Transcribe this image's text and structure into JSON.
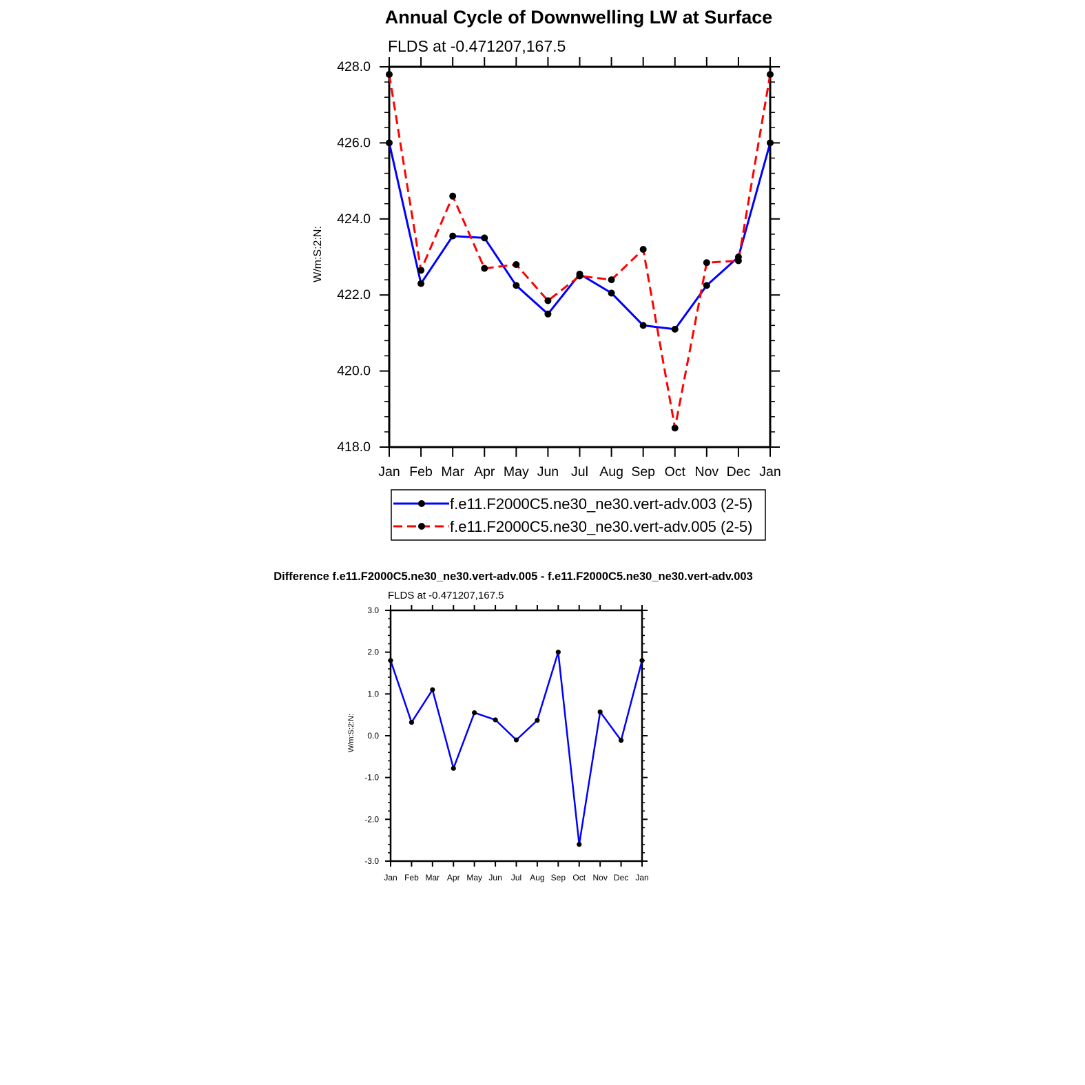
{
  "chart_data": [
    {
      "type": "line",
      "title": "Annual Cycle of Downwelling LW at Surface",
      "subtitle": "FLDS at -0.471207,167.5",
      "xlabel": "",
      "ylabel": "W/m:S:2:N:",
      "categories": [
        "Jan",
        "Feb",
        "Mar",
        "Apr",
        "May",
        "Jun",
        "Jul",
        "Aug",
        "Sep",
        "Oct",
        "Nov",
        "Dec",
        "Jan"
      ],
      "ylim": [
        418.0,
        428.0
      ],
      "yticks": [
        "418.0",
        "420.0",
        "422.0",
        "424.0",
        "426.0",
        "428.0"
      ],
      "grid": false,
      "legend_position": "bottom",
      "series": [
        {
          "name": "f.e11.F2000C5.ne30_ne30.vert-adv.003 (2-5)",
          "color": "#0000ff",
          "dash": "solid",
          "values": [
            426.0,
            422.3,
            423.55,
            423.5,
            422.25,
            421.5,
            422.55,
            422.05,
            421.2,
            421.1,
            422.25,
            423.0,
            426.0
          ]
        },
        {
          "name": "f.e11.F2000C5.ne30_ne30.vert-adv.005 (2-5)",
          "color": "#ff0000",
          "dash": "dashed",
          "values": [
            427.8,
            422.65,
            424.6,
            422.7,
            422.8,
            421.85,
            422.5,
            422.4,
            423.2,
            418.5,
            422.85,
            422.9,
            427.8
          ]
        }
      ]
    },
    {
      "type": "line",
      "title": "Difference f.e11.F2000C5.ne30_ne30.vert-adv.005 - f.e11.F2000C5.ne30_ne30.vert-adv.003",
      "subtitle": "FLDS at -0.471207,167.5",
      "xlabel": "",
      "ylabel": "W/m:S:2:N:",
      "categories": [
        "Jan",
        "Feb",
        "Mar",
        "Apr",
        "May",
        "Jun",
        "Jul",
        "Aug",
        "Sep",
        "Oct",
        "Nov",
        "Dec",
        "Jan"
      ],
      "ylim": [
        -3.0,
        3.0
      ],
      "yticks": [
        "-3.0",
        "-2.0",
        "-1.0",
        "0.0",
        "1.0",
        "2.0",
        "3.0"
      ],
      "grid": false,
      "series": [
        {
          "color": "#0000ff",
          "dash": "solid",
          "values": [
            1.8,
            0.32,
            1.1,
            -0.78,
            0.55,
            0.38,
            -0.1,
            0.37,
            2.0,
            -2.6,
            0.57,
            -0.11,
            1.8
          ]
        }
      ]
    }
  ]
}
